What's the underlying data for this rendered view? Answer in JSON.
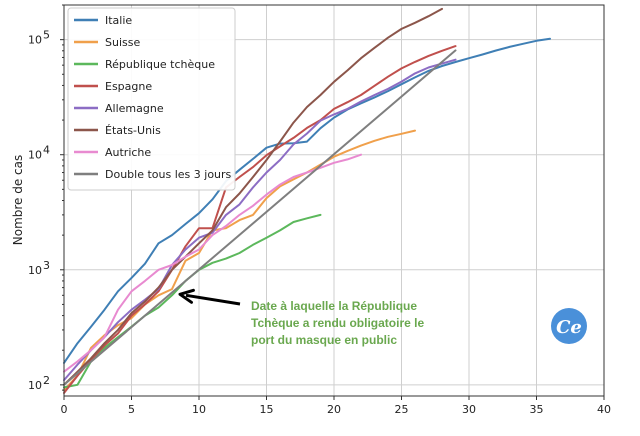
{
  "chart_data": {
    "type": "line",
    "title": "",
    "xlabel": "",
    "ylabel": "Nombre de cas",
    "xlim": [
      0,
      40
    ],
    "ylim": [
      80,
      200000
    ],
    "yscale": "log",
    "grid": true,
    "legend_position": "top-left",
    "xticks": [
      0,
      5,
      10,
      15,
      20,
      25,
      30,
      35,
      40
    ],
    "yticks": [
      {
        "value": 100,
        "base": "10",
        "exp": "2"
      },
      {
        "value": 1000,
        "base": "10",
        "exp": "3"
      },
      {
        "value": 10000,
        "base": "10",
        "exp": "4"
      },
      {
        "value": 100000,
        "base": "10",
        "exp": "5"
      }
    ],
    "series": [
      {
        "name": "Italie",
        "color": "#3f7fb5",
        "x": [
          0,
          1,
          2,
          3,
          4,
          5,
          6,
          7,
          8,
          9,
          10,
          11,
          12,
          13,
          14,
          15,
          16,
          17,
          18,
          19,
          20,
          21,
          22,
          23,
          24,
          25,
          26,
          27,
          28,
          29,
          30,
          31,
          32,
          33,
          34,
          35,
          36
        ],
        "y": [
          155,
          230,
          320,
          450,
          650,
          850,
          1130,
          1700,
          2000,
          2500,
          3100,
          4100,
          5900,
          7400,
          9200,
          11500,
          12500,
          12600,
          13000,
          17000,
          21000,
          24700,
          27900,
          31500,
          35700,
          41000,
          47000,
          53500,
          59000,
          63900,
          69000,
          74300,
          80500,
          86500,
          92000,
          97700,
          101700
        ]
      },
      {
        "name": "Suisse",
        "color": "#f0a04b",
        "x": [
          0,
          1,
          2,
          3,
          4,
          5,
          6,
          7,
          8,
          9,
          10,
          11,
          12,
          13,
          14,
          15,
          16,
          17,
          18,
          19,
          20,
          21,
          22,
          23,
          24,
          25,
          26
        ],
        "y": [
          90,
          120,
          210,
          270,
          330,
          380,
          500,
          600,
          680,
          1200,
          1400,
          2200,
          2300,
          2700,
          3000,
          4200,
          5300,
          6100,
          7000,
          8200,
          9600,
          10800,
          12000,
          13200,
          14300,
          15200,
          16200
        ]
      },
      {
        "name": "République tchèque",
        "color": "#5cb85c",
        "x": [
          0,
          1,
          2,
          3,
          4,
          5,
          6,
          7,
          8,
          9,
          10,
          11,
          12,
          13,
          14,
          15,
          16,
          17,
          18,
          19
        ],
        "y": [
          95,
          100,
          160,
          210,
          260,
          320,
          400,
          470,
          600,
          800,
          1000,
          1150,
          1250,
          1400,
          1650,
          1900,
          2200,
          2600,
          2800,
          3000
        ]
      },
      {
        "name": "Espagne",
        "color": "#c0504d",
        "x": [
          0,
          1,
          2,
          3,
          4,
          5,
          6,
          7,
          8,
          9,
          10,
          11,
          12,
          13,
          14,
          15,
          16,
          17,
          18,
          19,
          20,
          21,
          22,
          23,
          24,
          25,
          26,
          27,
          28,
          29
        ],
        "y": [
          85,
          120,
          165,
          220,
          280,
          400,
          500,
          650,
          1000,
          1600,
          2300,
          2300,
          5200,
          6400,
          7800,
          9900,
          11800,
          14000,
          17100,
          20000,
          25000,
          28600,
          33000,
          39700,
          47600,
          56200,
          64000,
          72200,
          80000,
          87900
        ]
      },
      {
        "name": "Allemagne",
        "color": "#8c6dc4",
        "x": [
          0,
          1,
          2,
          3,
          4,
          5,
          6,
          7,
          8,
          9,
          10,
          11,
          12,
          13,
          14,
          15,
          16,
          17,
          18,
          19,
          20,
          21,
          22,
          23,
          24,
          25,
          26,
          27,
          28,
          29
        ],
        "y": [
          110,
          150,
          200,
          260,
          350,
          450,
          550,
          680,
          1100,
          1500,
          1900,
          2100,
          3000,
          3700,
          5200,
          7000,
          9000,
          12300,
          15300,
          19800,
          22400,
          25000,
          29000,
          33000,
          37300,
          43200,
          50900,
          57300,
          61900,
          67000
        ]
      },
      {
        "name": "États-Unis",
        "color": "#8c564b",
        "x": [
          0,
          1,
          2,
          3,
          4,
          5,
          6,
          7,
          8,
          9,
          10,
          11,
          12,
          13,
          14,
          15,
          16,
          17,
          18,
          19,
          20,
          21,
          22,
          23,
          24,
          25,
          26,
          27,
          28
        ],
        "y": [
          100,
          130,
          170,
          230,
          300,
          420,
          530,
          700,
          1000,
          1300,
          1700,
          2200,
          3500,
          4600,
          6400,
          9000,
          13000,
          19000,
          26000,
          33000,
          43000,
          54000,
          69000,
          85000,
          104000,
          124000,
          140000,
          160000,
          185000
        ]
      },
      {
        "name": "Autriche",
        "color": "#e88ad0",
        "x": [
          0,
          1,
          2,
          3,
          4,
          5,
          6,
          7,
          8,
          9,
          10,
          11,
          12,
          13,
          14,
          15,
          16,
          17,
          18,
          19,
          20,
          21,
          22
        ],
        "y": [
          130,
          160,
          200,
          260,
          450,
          650,
          800,
          1000,
          1100,
          1300,
          1500,
          2000,
          2400,
          3000,
          3600,
          4500,
          5500,
          6400,
          7000,
          7700,
          8500,
          9100,
          10000
        ]
      },
      {
        "name": "Double tous les 3 jours",
        "color": "#7f7f7f",
        "x": [
          0,
          29
        ],
        "y": [
          100,
          80600
        ]
      }
    ],
    "annotation": {
      "lines": [
        "Date à laquelle la République",
        "Tchèque a rendu obligatoire le",
        "port du masque en public"
      ],
      "target_x": 8,
      "target_y": 650,
      "color": "#6aa84f"
    }
  },
  "logo": {
    "text": "Ce",
    "color": "#4a90d9"
  }
}
